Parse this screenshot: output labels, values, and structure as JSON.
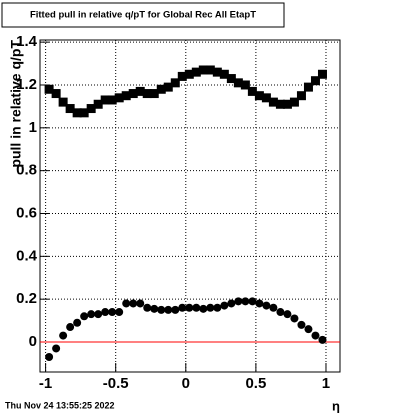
{
  "chart_data": {
    "type": "scatter",
    "title": "Fitted pull in relative q/pT for Global Rec All EtapT",
    "y_label": "pull in relative q/pT",
    "x_label": "η",
    "timestamp": "Thu Nov 24 13:55:25 2022",
    "xlim": [
      -1.04,
      1.1
    ],
    "ylim": [
      -0.14,
      1.41
    ],
    "xticks": [
      -1,
      -0.5,
      0,
      0.5,
      1
    ],
    "yticks": [
      0,
      0.2,
      0.4,
      0.6,
      0.8,
      1,
      1.2,
      1.4
    ],
    "grid": true,
    "reference_line": {
      "y": 0,
      "color": "#ff0000"
    },
    "series": [
      {
        "marker": "square",
        "color": "#000000",
        "x": [
          -0.975,
          -0.925,
          -0.875,
          -0.825,
          -0.775,
          -0.725,
          -0.675,
          -0.625,
          -0.575,
          -0.525,
          -0.475,
          -0.425,
          -0.375,
          -0.325,
          -0.275,
          -0.225,
          -0.175,
          -0.125,
          -0.075,
          -0.025,
          0.025,
          0.075,
          0.125,
          0.175,
          0.225,
          0.275,
          0.325,
          0.375,
          0.425,
          0.475,
          0.525,
          0.575,
          0.625,
          0.675,
          0.725,
          0.775,
          0.825,
          0.875,
          0.925,
          0.975
        ],
        "values": [
          1.18,
          1.16,
          1.12,
          1.09,
          1.07,
          1.07,
          1.09,
          1.11,
          1.13,
          1.13,
          1.14,
          1.15,
          1.16,
          1.17,
          1.16,
          1.16,
          1.18,
          1.19,
          1.21,
          1.24,
          1.25,
          1.26,
          1.27,
          1.27,
          1.26,
          1.25,
          1.23,
          1.21,
          1.2,
          1.17,
          1.15,
          1.14,
          1.12,
          1.11,
          1.11,
          1.12,
          1.15,
          1.19,
          1.22,
          1.25
        ]
      },
      {
        "marker": "circle",
        "color": "#000000",
        "x": [
          -0.975,
          -0.925,
          -0.875,
          -0.825,
          -0.775,
          -0.725,
          -0.675,
          -0.625,
          -0.575,
          -0.525,
          -0.475,
          -0.425,
          -0.375,
          -0.325,
          -0.275,
          -0.225,
          -0.175,
          -0.125,
          -0.075,
          -0.025,
          0.025,
          0.075,
          0.125,
          0.175,
          0.225,
          0.275,
          0.325,
          0.375,
          0.425,
          0.475,
          0.525,
          0.575,
          0.625,
          0.675,
          0.725,
          0.775,
          0.825,
          0.875,
          0.925,
          0.975
        ],
        "values": [
          -0.07,
          -0.03,
          0.03,
          0.07,
          0.09,
          0.12,
          0.13,
          0.13,
          0.14,
          0.14,
          0.14,
          0.18,
          0.18,
          0.18,
          0.16,
          0.155,
          0.15,
          0.15,
          0.15,
          0.16,
          0.16,
          0.16,
          0.155,
          0.16,
          0.16,
          0.17,
          0.18,
          0.19,
          0.19,
          0.19,
          0.18,
          0.17,
          0.16,
          0.14,
          0.13,
          0.11,
          0.08,
          0.06,
          0.03,
          0.01
        ]
      }
    ]
  }
}
